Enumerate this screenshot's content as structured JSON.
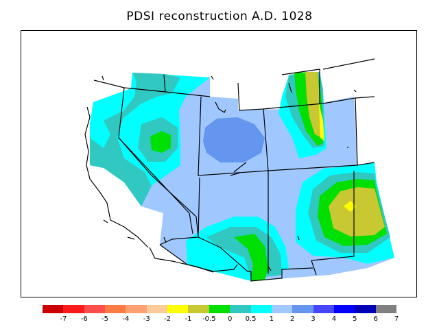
{
  "title": "PDSI reconstruction A.D. 1028",
  "legend": {
    "colors": [
      "#cc0000",
      "#ff1a1a",
      "#ff4d4d",
      "#ff7a40",
      "#ffa070",
      "#ffcc99",
      "#ffff00",
      "#c8c832",
      "#00e000",
      "#30c8c0",
      "#00ffff",
      "#a0c8ff",
      "#6496f0",
      "#4646ff",
      "#0000ff",
      "#0000b4",
      "#808080"
    ],
    "tick_labels": [
      "-7",
      "-6",
      "-5",
      "-4",
      "-3",
      "-2",
      "-1",
      "-0.5",
      "0",
      "0.5",
      "1",
      "2",
      "3",
      "4",
      "5",
      "6",
      "7"
    ]
  }
}
